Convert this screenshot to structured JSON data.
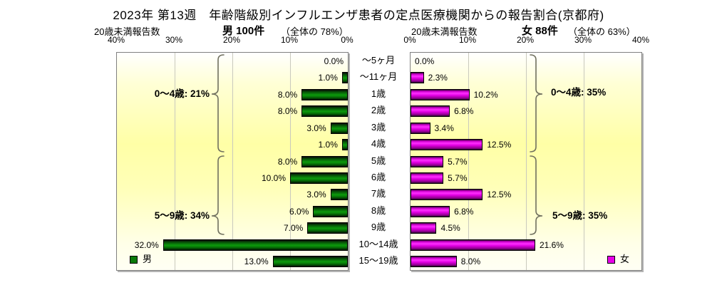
{
  "title": "2023年 第13週　年齢階級別インフルエンザ患者の定点医療機関からの報告割合(京都府)",
  "header": {
    "left": {
      "count_label": "20歳未満報告数",
      "main": "男 100件",
      "sub": "（全体の 78%）"
    },
    "right": {
      "count_label": "20歳未満報告数",
      "main": "女 88件",
      "sub": "（全体の 63%）"
    }
  },
  "legend": {
    "male": "男",
    "female": "女"
  },
  "axis": {
    "left_ticks": [
      "40%",
      "30%",
      "20%",
      "10%",
      "0%"
    ],
    "right_ticks": [
      "0%",
      "10%",
      "20%",
      "30%",
      "40%"
    ]
  },
  "annotations": {
    "left": [
      {
        "label": "0～4歳: 21%"
      },
      {
        "label": "5～9歳: 34%"
      }
    ],
    "right": [
      {
        "label": "0～4歳: 35%"
      },
      {
        "label": "5～9歳: 35%"
      }
    ]
  },
  "colors": {
    "male_bar": "#0A7A0A",
    "female_bar": "#E800E8",
    "plot_background_accent": "#FFFF99",
    "gridline": "#C9C9BD"
  },
  "chart_data": {
    "type": "bar",
    "orientation": "horizontal back-to-back pyramid",
    "title": "2023年 第13週　年齢階級別インフルエンザ患者の定点医療機関からの報告割合(京都府)",
    "categories": [
      "～5ヶ月",
      "～11ヶ月",
      "1歳",
      "2歳",
      "3歳",
      "4歳",
      "5歳",
      "6歳",
      "7歳",
      "8歳",
      "9歳",
      "10～14歳",
      "15～19歳"
    ],
    "series": [
      {
        "name": "男",
        "side": "left",
        "total_note": "男 100件（全体の 78%）",
        "values": [
          0.0,
          1.0,
          8.0,
          8.0,
          3.0,
          1.0,
          8.0,
          10.0,
          3.0,
          6.0,
          7.0,
          32.0,
          13.0
        ],
        "labels": [
          "0.0%",
          "1.0%",
          "8.0%",
          "8.0%",
          "3.0%",
          "1.0%",
          "8.0%",
          "10.0%",
          "3.0%",
          "6.0%",
          "7.0%",
          "32.0%",
          "13.0%"
        ]
      },
      {
        "name": "女",
        "side": "right",
        "total_note": "女 88件（全体の 63%）",
        "values": [
          0.0,
          2.3,
          10.2,
          6.8,
          3.4,
          12.5,
          5.7,
          5.7,
          12.5,
          6.8,
          4.5,
          21.6,
          8.0
        ],
        "labels": [
          "0.0%",
          "2.3%",
          "10.2%",
          "6.8%",
          "3.4%",
          "12.5%",
          "5.7%",
          "5.7%",
          "12.5%",
          "6.8%",
          "4.5%",
          "21.6%",
          "8.0%"
        ]
      }
    ],
    "xlim": [
      0,
      40
    ],
    "gridlines_pct": [
      10,
      20,
      30
    ],
    "grid": true,
    "legend_position": "inside-bottom",
    "group_summaries": [
      {
        "group": "0～4歳",
        "male": "21%",
        "female": "35%"
      },
      {
        "group": "5～9歳",
        "male": "34%",
        "female": "35%"
      }
    ]
  }
}
